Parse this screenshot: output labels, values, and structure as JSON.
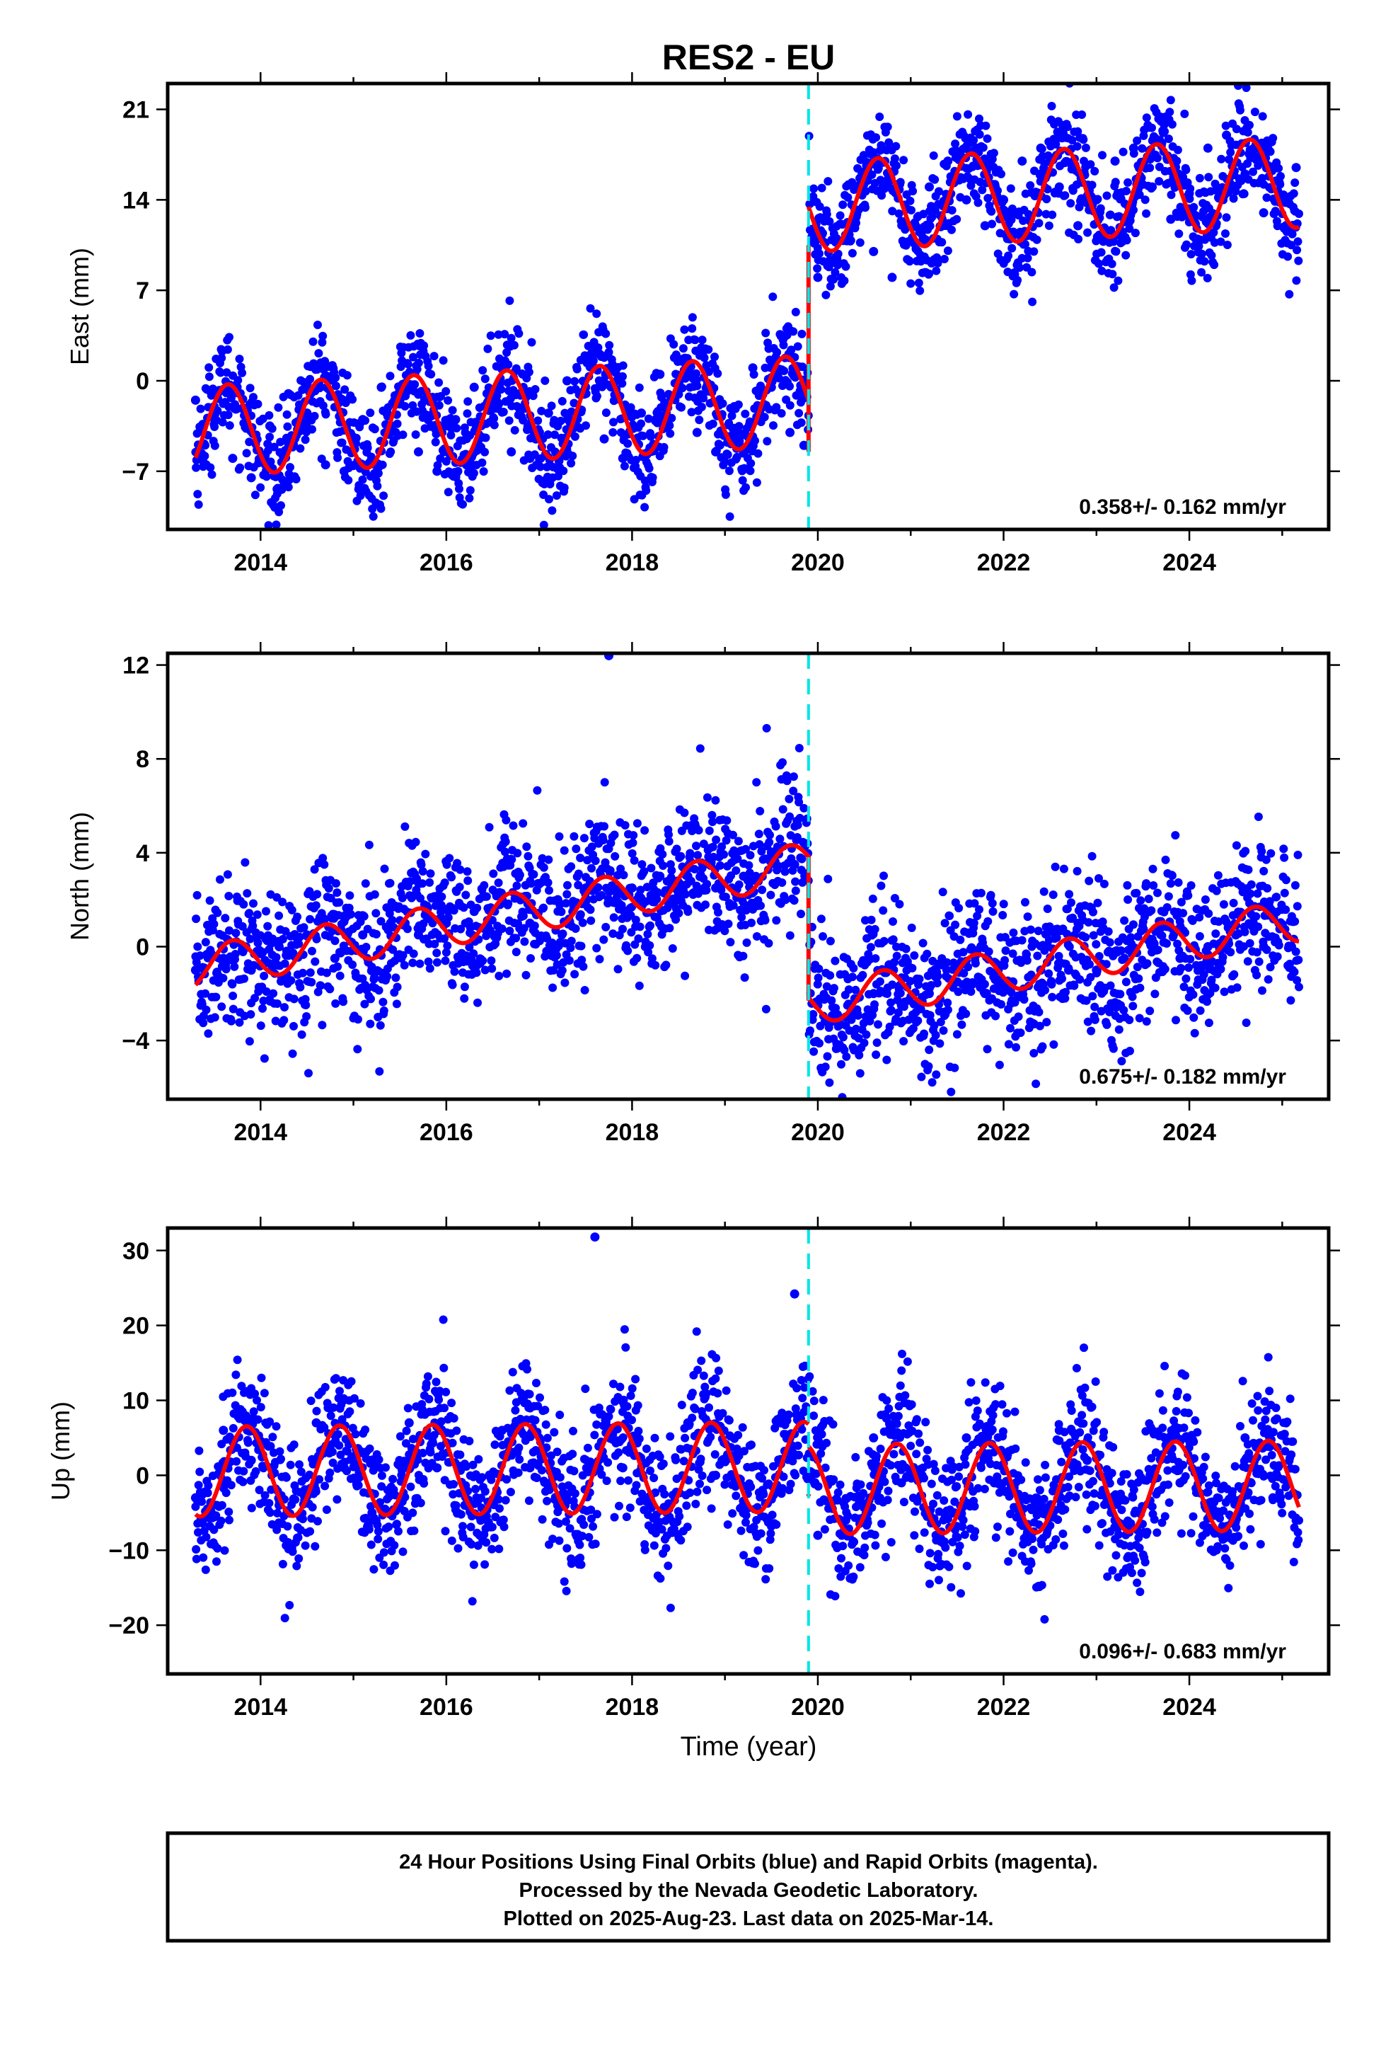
{
  "title": "RES2 - EU",
  "colors": {
    "final_orbits": "#0000ff",
    "model": "#ff0000",
    "offset_line": "#00e5e5"
  },
  "footer": {
    "line1": "24 Hour Positions Using Final Orbits (blue) and Rapid Orbits (magenta).",
    "line2": "Processed by the Nevada Geodetic Laboratory.",
    "line3": "Plotted on 2025-Aug-23. Last data on 2025-Mar-14."
  },
  "chart_data": [
    {
      "type": "scatter",
      "component": "east",
      "ylabel": "East (mm)",
      "xlabel": "",
      "xlim": [
        2013.0,
        2025.5
      ],
      "ylim": [
        -11.5,
        23.0
      ],
      "xticks": [
        2014,
        2016,
        2018,
        2020,
        2022,
        2024
      ],
      "xtick_labels": [
        "2014",
        "2016",
        "2018",
        "2020",
        "2022",
        "2024"
      ],
      "yticks": [
        -7,
        0,
        7,
        14,
        21
      ],
      "ytick_labels": [
        "−7",
        "0",
        "7",
        "14",
        "21"
      ],
      "rate_label": "0.358+/- 0.162 mm/yr",
      "offset_epoch": 2019.9,
      "series": [
        {
          "kind": "observations",
          "color": "#0000ff",
          "x": [
            2013.3,
            2013.5,
            2013.7,
            2013.9,
            2014.1,
            2014.3,
            2014.5,
            2014.7,
            2014.9,
            2015.1,
            2015.3,
            2015.5,
            2015.7,
            2015.9,
            2016.1,
            2016.3,
            2016.5,
            2016.7,
            2016.9,
            2017.1,
            2017.3,
            2017.5,
            2017.7,
            2017.9,
            2018.1,
            2018.3,
            2018.5,
            2018.7,
            2018.9,
            2019.1,
            2019.3,
            2019.5,
            2019.7,
            2019.85,
            2020.0,
            2020.2,
            2020.4,
            2020.6,
            2020.8,
            2021.0,
            2021.2,
            2021.4,
            2021.6,
            2021.8,
            2022.0,
            2022.2,
            2022.4,
            2022.6,
            2022.8,
            2023.0,
            2023.2,
            2023.4,
            2023.6,
            2023.8,
            2024.0,
            2024.2,
            2024.4,
            2024.6,
            2024.8,
            2025.0,
            2025.15
          ],
          "y": [
            -1.5,
            -2.0,
            -6.0,
            -7.5,
            -3.5,
            -1.0,
            -2.5,
            -6.5,
            -7.0,
            -3.0,
            -0.5,
            -1.5,
            -5.5,
            -7.0,
            -3.0,
            -0.5,
            -1.5,
            -5.5,
            -6.0,
            -2.5,
            0.0,
            -0.5,
            -4.5,
            -6.0,
            -2.5,
            0.5,
            -0.5,
            -4.0,
            -5.5,
            -2.0,
            1.0,
            -0.5,
            -4.0,
            -5.0,
            8.0,
            11.0,
            13.0,
            10.0,
            8.0,
            12.0,
            15.0,
            17.0,
            14.0,
            12.0,
            14.0,
            17.0,
            18.0,
            15.0,
            12.0,
            14.0,
            17.0,
            18.0,
            15.0,
            12.5,
            14.5,
            18.0,
            19.0,
            16.0,
            13.0,
            14.0,
            16.5
          ]
        },
        {
          "kind": "model",
          "color": "#ff0000",
          "trend_mm_per_yr": 0.358,
          "seasonal_amplitude_mm": 3.5,
          "seasonal_phase_year": 0.4,
          "offset_mm": 15.0,
          "intercept_mm": -3.9,
          "ref_year": 2013.3,
          "jump_left_mm": -5.5,
          "jump_right_mm": 10.5
        }
      ]
    },
    {
      "type": "scatter",
      "component": "north",
      "ylabel": "North (mm)",
      "xlabel": "",
      "xlim": [
        2013.0,
        2025.5
      ],
      "ylim": [
        -6.5,
        12.5
      ],
      "xticks": [
        2014,
        2016,
        2018,
        2020,
        2022,
        2024
      ],
      "xtick_labels": [
        "2014",
        "2016",
        "2018",
        "2020",
        "2022",
        "2024"
      ],
      "yticks": [
        -4,
        0,
        4,
        8,
        12
      ],
      "ytick_labels": [
        "−4",
        "0",
        "4",
        "8",
        "12"
      ],
      "rate_label": "0.675+/- 0.182 mm/yr",
      "offset_epoch": 2019.9,
      "series": [
        {
          "kind": "observations",
          "color": "#0000ff",
          "x": [
            2013.3,
            2013.6,
            2013.9,
            2014.2,
            2014.5,
            2014.8,
            2015.1,
            2015.4,
            2015.7,
            2016.0,
            2016.3,
            2016.6,
            2016.9,
            2017.2,
            2017.5,
            2017.75,
            2018.0,
            2018.3,
            2018.6,
            2018.9,
            2019.2,
            2019.5,
            2019.75,
            2020.0,
            2020.3,
            2020.6,
            2020.9,
            2021.2,
            2021.5,
            2021.8,
            2022.1,
            2022.4,
            2022.7,
            2023.0,
            2023.3,
            2023.6,
            2023.9,
            2024.2,
            2024.5,
            2024.8,
            2025.1
          ],
          "y": [
            -1.0,
            -0.5,
            -1.0,
            0.0,
            0.5,
            -0.5,
            0.5,
            1.0,
            0.5,
            1.0,
            1.5,
            2.0,
            1.0,
            2.0,
            2.5,
            12.4,
            2.5,
            3.0,
            3.0,
            2.5,
            3.0,
            4.0,
            3.5,
            -2.5,
            -3.0,
            -2.0,
            -2.5,
            -2.0,
            -1.5,
            -2.0,
            -1.5,
            -1.0,
            -1.0,
            -1.0,
            -0.5,
            0.0,
            -0.5,
            0.0,
            0.5,
            0.0,
            0.0
          ]
        },
        {
          "kind": "model",
          "color": "#ff0000",
          "trend_mm_per_yr": 0.675,
          "seasonal_amplitude_mm": 0.9,
          "seasonal_phase_year": 0.45,
          "offset_mm": -6.0,
          "intercept_mm": -0.9,
          "ref_year": 2013.3,
          "jump_left_mm": 3.9,
          "jump_right_mm": -2.3
        }
      ]
    },
    {
      "type": "scatter",
      "component": "up",
      "ylabel": "Up (mm)",
      "xlabel": "Time (year)",
      "xlim": [
        2013.0,
        2025.5
      ],
      "ylim": [
        -26.5,
        33.0
      ],
      "xticks": [
        2014,
        2016,
        2018,
        2020,
        2022,
        2024
      ],
      "xtick_labels": [
        "2014",
        "2016",
        "2018",
        "2020",
        "2022",
        "2024"
      ],
      "yticks": [
        -20,
        -10,
        0,
        10,
        20,
        30
      ],
      "ytick_labels": [
        "−20",
        "−10",
        "0",
        "10",
        "20",
        "30"
      ],
      "rate_label": "0.096+/- 0.683 mm/yr",
      "offset_epoch": 2019.9,
      "series": [
        {
          "kind": "observations",
          "color": "#0000ff",
          "x": [
            2013.3,
            2013.6,
            2013.9,
            2014.2,
            2014.6,
            2014.9,
            2015.2,
            2015.6,
            2015.9,
            2016.2,
            2016.6,
            2016.9,
            2017.2,
            2017.6,
            2017.9,
            2018.2,
            2018.6,
            2018.9,
            2019.2,
            2019.6,
            2019.75,
            2020.0,
            2020.3,
            2020.6,
            2020.9,
            2021.2,
            2021.6,
            2021.9,
            2022.2,
            2022.6,
            2022.9,
            2023.2,
            2023.6,
            2023.9,
            2024.2,
            2024.6,
            2024.9,
            2025.15
          ],
          "y": [
            -3.0,
            6.0,
            2.0,
            -4.0,
            7.0,
            1.0,
            -5.0,
            7.0,
            1.0,
            -4.0,
            6.0,
            1.0,
            -4.0,
            31.8,
            1.0,
            -4.0,
            7.0,
            0.0,
            -5.0,
            7.0,
            24.2,
            -8.0,
            -6.0,
            5.0,
            -1.0,
            -5.0,
            5.0,
            -1.0,
            -6.0,
            6.0,
            2.0,
            -6.0,
            6.0,
            -1.0,
            -7.0,
            5.0,
            -3.0,
            -6.0
          ]
        },
        {
          "kind": "model",
          "color": "#ff0000",
          "trend_mm_per_yr": 0.096,
          "seasonal_amplitude_mm": 6.0,
          "seasonal_phase_year": 0.6,
          "offset_mm": -3.0,
          "intercept_mm": 0.5,
          "ref_year": 2013.3,
          "jump_left_mm": -2.5,
          "jump_right_mm": -2.8
        }
      ]
    }
  ]
}
